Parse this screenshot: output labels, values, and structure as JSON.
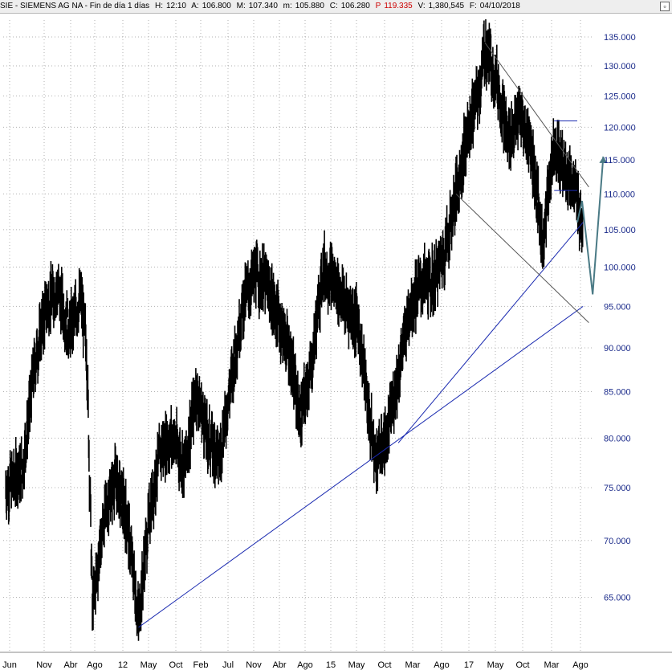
{
  "header": {
    "symbol": "SIE - SIEMENS AG NA - Fin de día 1 días",
    "hour_label": "H:",
    "hour": "12:10",
    "open_label": "A:",
    "open": "106.800",
    "high_label": "M:",
    "high": "107.340",
    "low_label": "m:",
    "low": "105.880",
    "close_label": "C:",
    "close": "106.280",
    "p_label": "P",
    "p": "119.335",
    "volume_label": "V:",
    "volume": "1,380,545",
    "date_label": "F:",
    "date": "04/10/2018",
    "close_button": "▫"
  },
  "colors": {
    "background": "#ffffff",
    "price": "#000000",
    "trendline": "#1a2ab0",
    "channel": "#555555",
    "arrow": "#4a7a85",
    "axis_text": "#1a2a8a",
    "p_value": "#cc0000"
  },
  "chart_data": {
    "type": "line",
    "title": "SIE - SIEMENS AG NA",
    "scale": "log",
    "ylim": [
      60.5,
      138
    ],
    "y_ticks": [
      "135.000",
      "130.000",
      "125.000",
      "120.000",
      "115.000",
      "110.000",
      "105.000",
      "100.000",
      "95.000",
      "90.000",
      "85.000",
      "80.000",
      "75.000",
      "70.000",
      "65.000"
    ],
    "x_ticks": [
      "Jun",
      "Nov",
      "Abr",
      "Ago",
      "12",
      "May",
      "Oct",
      "Feb",
      "Jul",
      "Nov",
      "Abr",
      "Ago",
      "15",
      "May",
      "Oct",
      "Mar",
      "Ago",
      "17",
      "May",
      "Oct",
      "Mar",
      "Ago"
    ],
    "grid": true,
    "series": [
      {
        "style": "daily-bars",
        "x": [
          "2010-06",
          "2010-09",
          "2010-11",
          "2011-01",
          "2011-03",
          "2011-05",
          "2011-07",
          "2011-08",
          "2011-09",
          "2011-11",
          "2012-01",
          "2012-03",
          "2012-05",
          "2012-07",
          "2012-09",
          "2012-11",
          "2013-01",
          "2013-03",
          "2013-05",
          "2013-07",
          "2013-09",
          "2013-11",
          "2014-01",
          "2014-03",
          "2014-05",
          "2014-07",
          "2014-09",
          "2014-11",
          "2015-01",
          "2015-03",
          "2015-05",
          "2015-07",
          "2015-09",
          "2015-10",
          "2015-12",
          "2016-02",
          "2016-04",
          "2016-06",
          "2016-08",
          "2016-10",
          "2016-12",
          "2017-02",
          "2017-04",
          "2017-05",
          "2017-07",
          "2017-09",
          "2017-11",
          "2018-01",
          "2018-03",
          "2018-05",
          "2018-06",
          "2018-08",
          "2018-10"
        ],
        "values": [
          75,
          77,
          88,
          95,
          97,
          92,
          96,
          90,
          64,
          72,
          76,
          72,
          63,
          73,
          79,
          80,
          77,
          85,
          80,
          78,
          86,
          95,
          99,
          98,
          94,
          90,
          82,
          88,
          100,
          98,
          95,
          93,
          82,
          78,
          80,
          87,
          95,
          98,
          98,
          102,
          110,
          119,
          126,
          133,
          128,
          118,
          122,
          117,
          103,
          118,
          115,
          112,
          106
        ]
      }
    ],
    "annotations": {
      "support_line_1": {
        "from": [
          "2012-05",
          62.5
        ],
        "to": [
          "2018-10",
          95.0
        ]
      },
      "support_line_2": {
        "from": [
          "2016-02",
          79.5
        ],
        "to": [
          "2018-10",
          106.0
        ]
      },
      "channel_upper": {
        "from": [
          "2017-05",
          134.0
        ],
        "to": [
          "2018-11",
          111.0
        ]
      },
      "channel_lower": {
        "from": [
          "2016-12",
          110.0
        ],
        "to": [
          "2018-11",
          93.0
        ]
      },
      "horizontal_high": {
        "from": [
          "2018-05",
          121.0
        ],
        "to": [
          "2018-09",
          121.0
        ]
      },
      "horizontal_low": {
        "from": [
          "2018-05",
          110.5
        ],
        "to": [
          "2018-09",
          110.5
        ]
      },
      "projection_arrow": [
        [
          "2018-09",
          106.0
        ],
        [
          "2018-09",
          109.0
        ],
        [
          "2018-10",
          96.5
        ],
        [
          "2018-11",
          115.5
        ]
      ]
    }
  }
}
